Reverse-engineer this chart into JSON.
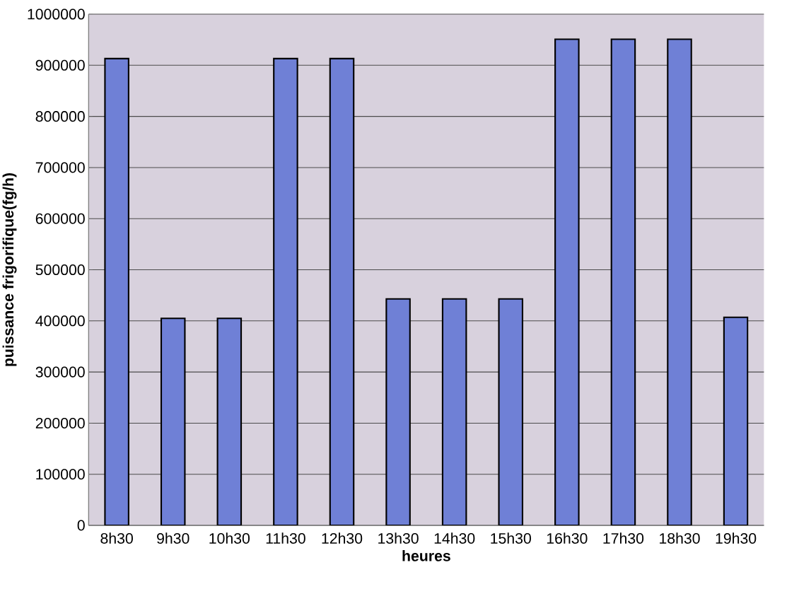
{
  "chart_data": {
    "type": "bar",
    "xlabel": "heures",
    "ylabel": "puissance frigorifique(fg/h)",
    "categories": [
      "8h30",
      "9h30",
      "10h30",
      "11h30",
      "12h30",
      "13h30",
      "14h30",
      "15h30",
      "16h30",
      "17h30",
      "18h30",
      "19h30"
    ],
    "values": [
      913000,
      405000,
      405000,
      913000,
      913000,
      443000,
      443000,
      443000,
      951000,
      951000,
      951000,
      407000
    ],
    "color": "#6f80d6",
    "ylim": [
      0,
      1000000
    ],
    "yticks": [
      0,
      100000,
      200000,
      300000,
      400000,
      500000,
      600000,
      700000,
      800000,
      900000,
      1000000
    ],
    "grid": "y"
  }
}
